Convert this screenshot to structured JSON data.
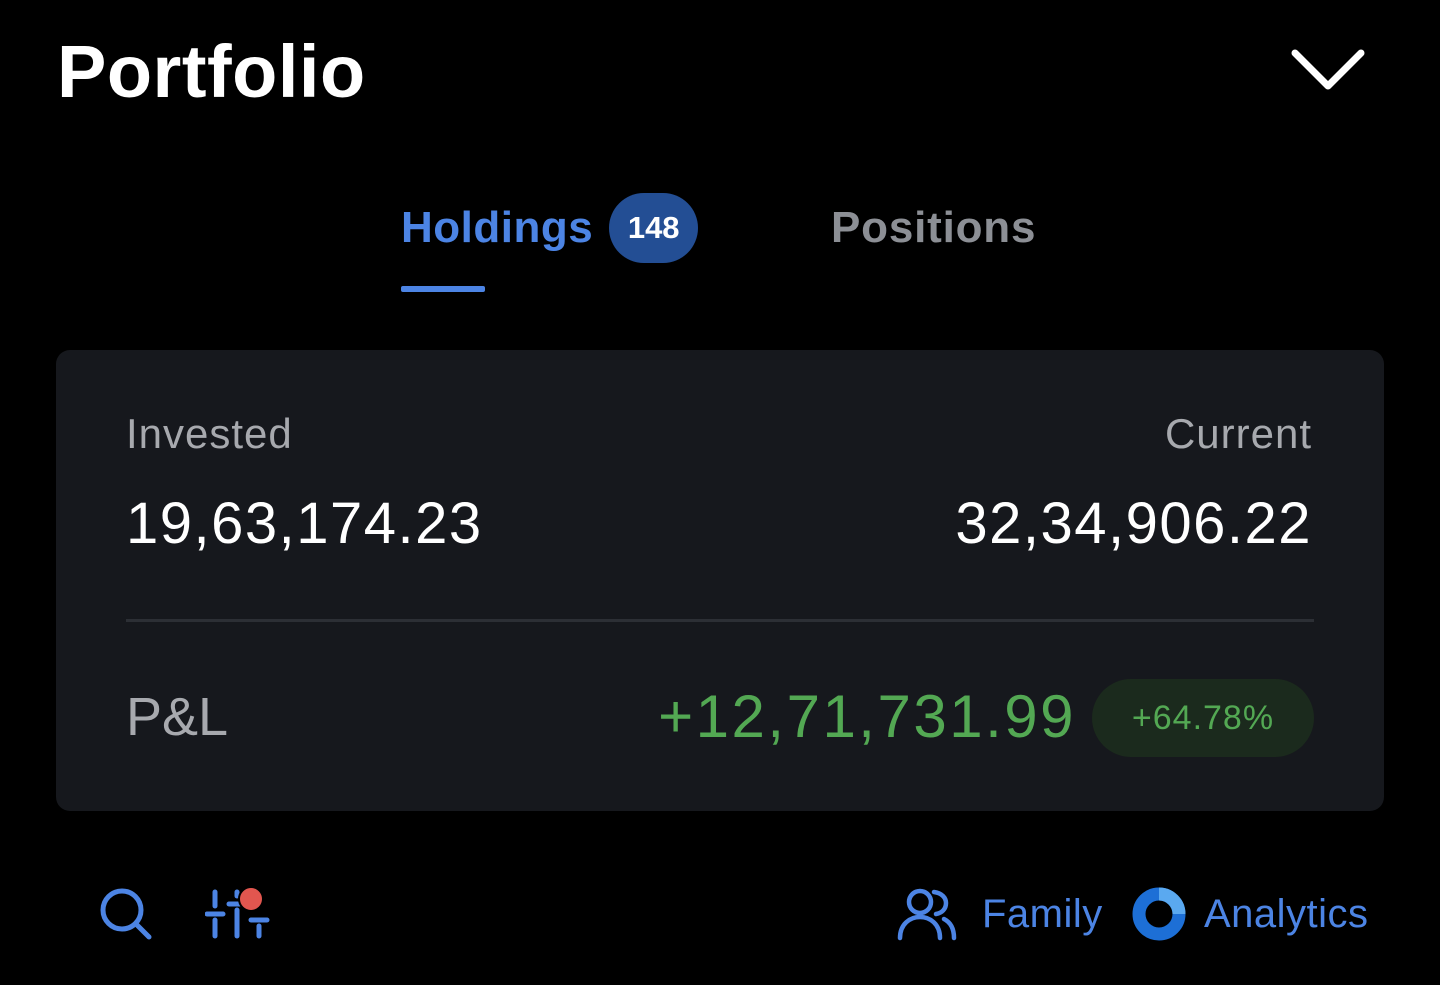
{
  "header": {
    "title": "Portfolio",
    "collapse_icon": "chevron-down-icon"
  },
  "tabs": [
    {
      "label": "Holdings",
      "count": "148",
      "active": true
    },
    {
      "label": "Positions",
      "active": false
    }
  ],
  "summary": {
    "invested_label": "Invested",
    "invested_value": "19,63,174.23",
    "current_label": "Current",
    "current_value": "32,34,906.22",
    "pnl_label": "P&L",
    "pnl_value": "+12,71,731.99",
    "pnl_percent": "+64.78%"
  },
  "toolbar": {
    "search_icon": "search-icon",
    "filter_icon": "filter-icon",
    "filter_active": true,
    "family_label": "Family",
    "family_icon": "users-icon",
    "analytics_label": "Analytics",
    "analytics_icon": "donut-chart-icon"
  },
  "colors": {
    "accent": "#4c84e4",
    "badge": "#234e94",
    "profit": "#53a853",
    "profit_badge_bg": "#1b2a1d",
    "card_bg": "#16181d",
    "notification_dot": "#e2564f"
  }
}
